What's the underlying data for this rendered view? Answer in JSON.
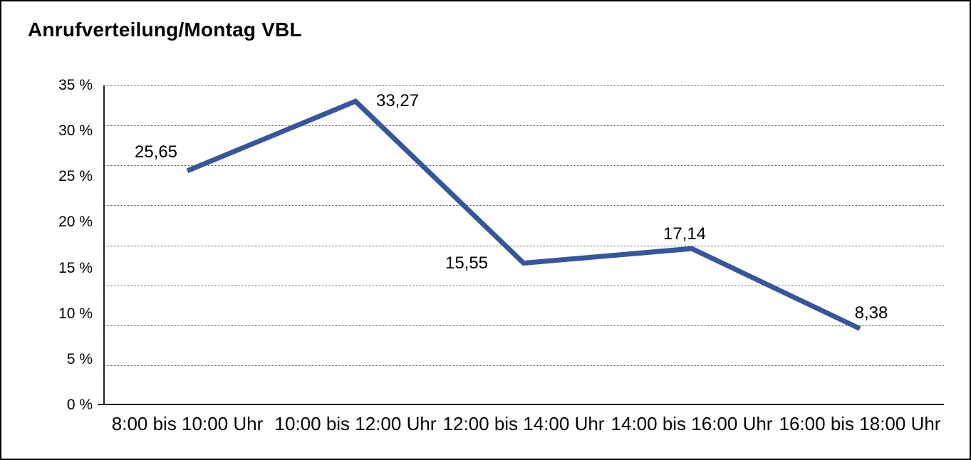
{
  "chart": {
    "title": "Anrufverteilung/Montag VBL"
  },
  "chart_data": {
    "type": "line",
    "title": "Anrufverteilung/Montag VBL",
    "categories": [
      "8:00 bis 10:00 Uhr",
      "10:00 bis 12:00 Uhr",
      "12:00 bis 14:00 Uhr",
      "14:00 bis 16:00 Uhr",
      "16:00 bis 18:00 Uhr"
    ],
    "values": [
      25.65,
      33.27,
      15.55,
      17.14,
      8.38
    ],
    "value_labels": [
      "25,65",
      "33,27",
      "15,55",
      "17,14",
      "8,38"
    ],
    "series_name": "Anrufverteilung Montag VBL",
    "xlabel": "",
    "ylabel": "",
    "y_tick_labels": [
      "0 %",
      "5 %",
      "10 %",
      "15 %",
      "20 %",
      "25 %",
      "30 %",
      "35 %"
    ],
    "y_tick_step": 5,
    "ylim": [
      0,
      35
    ],
    "grid": true,
    "grid_style": "dotted",
    "grid_divisions": 8,
    "legend": false,
    "line_color": "#35569B",
    "axis_color": "#1f1f1f",
    "text_color": "#000000",
    "decimal_separator": ","
  }
}
